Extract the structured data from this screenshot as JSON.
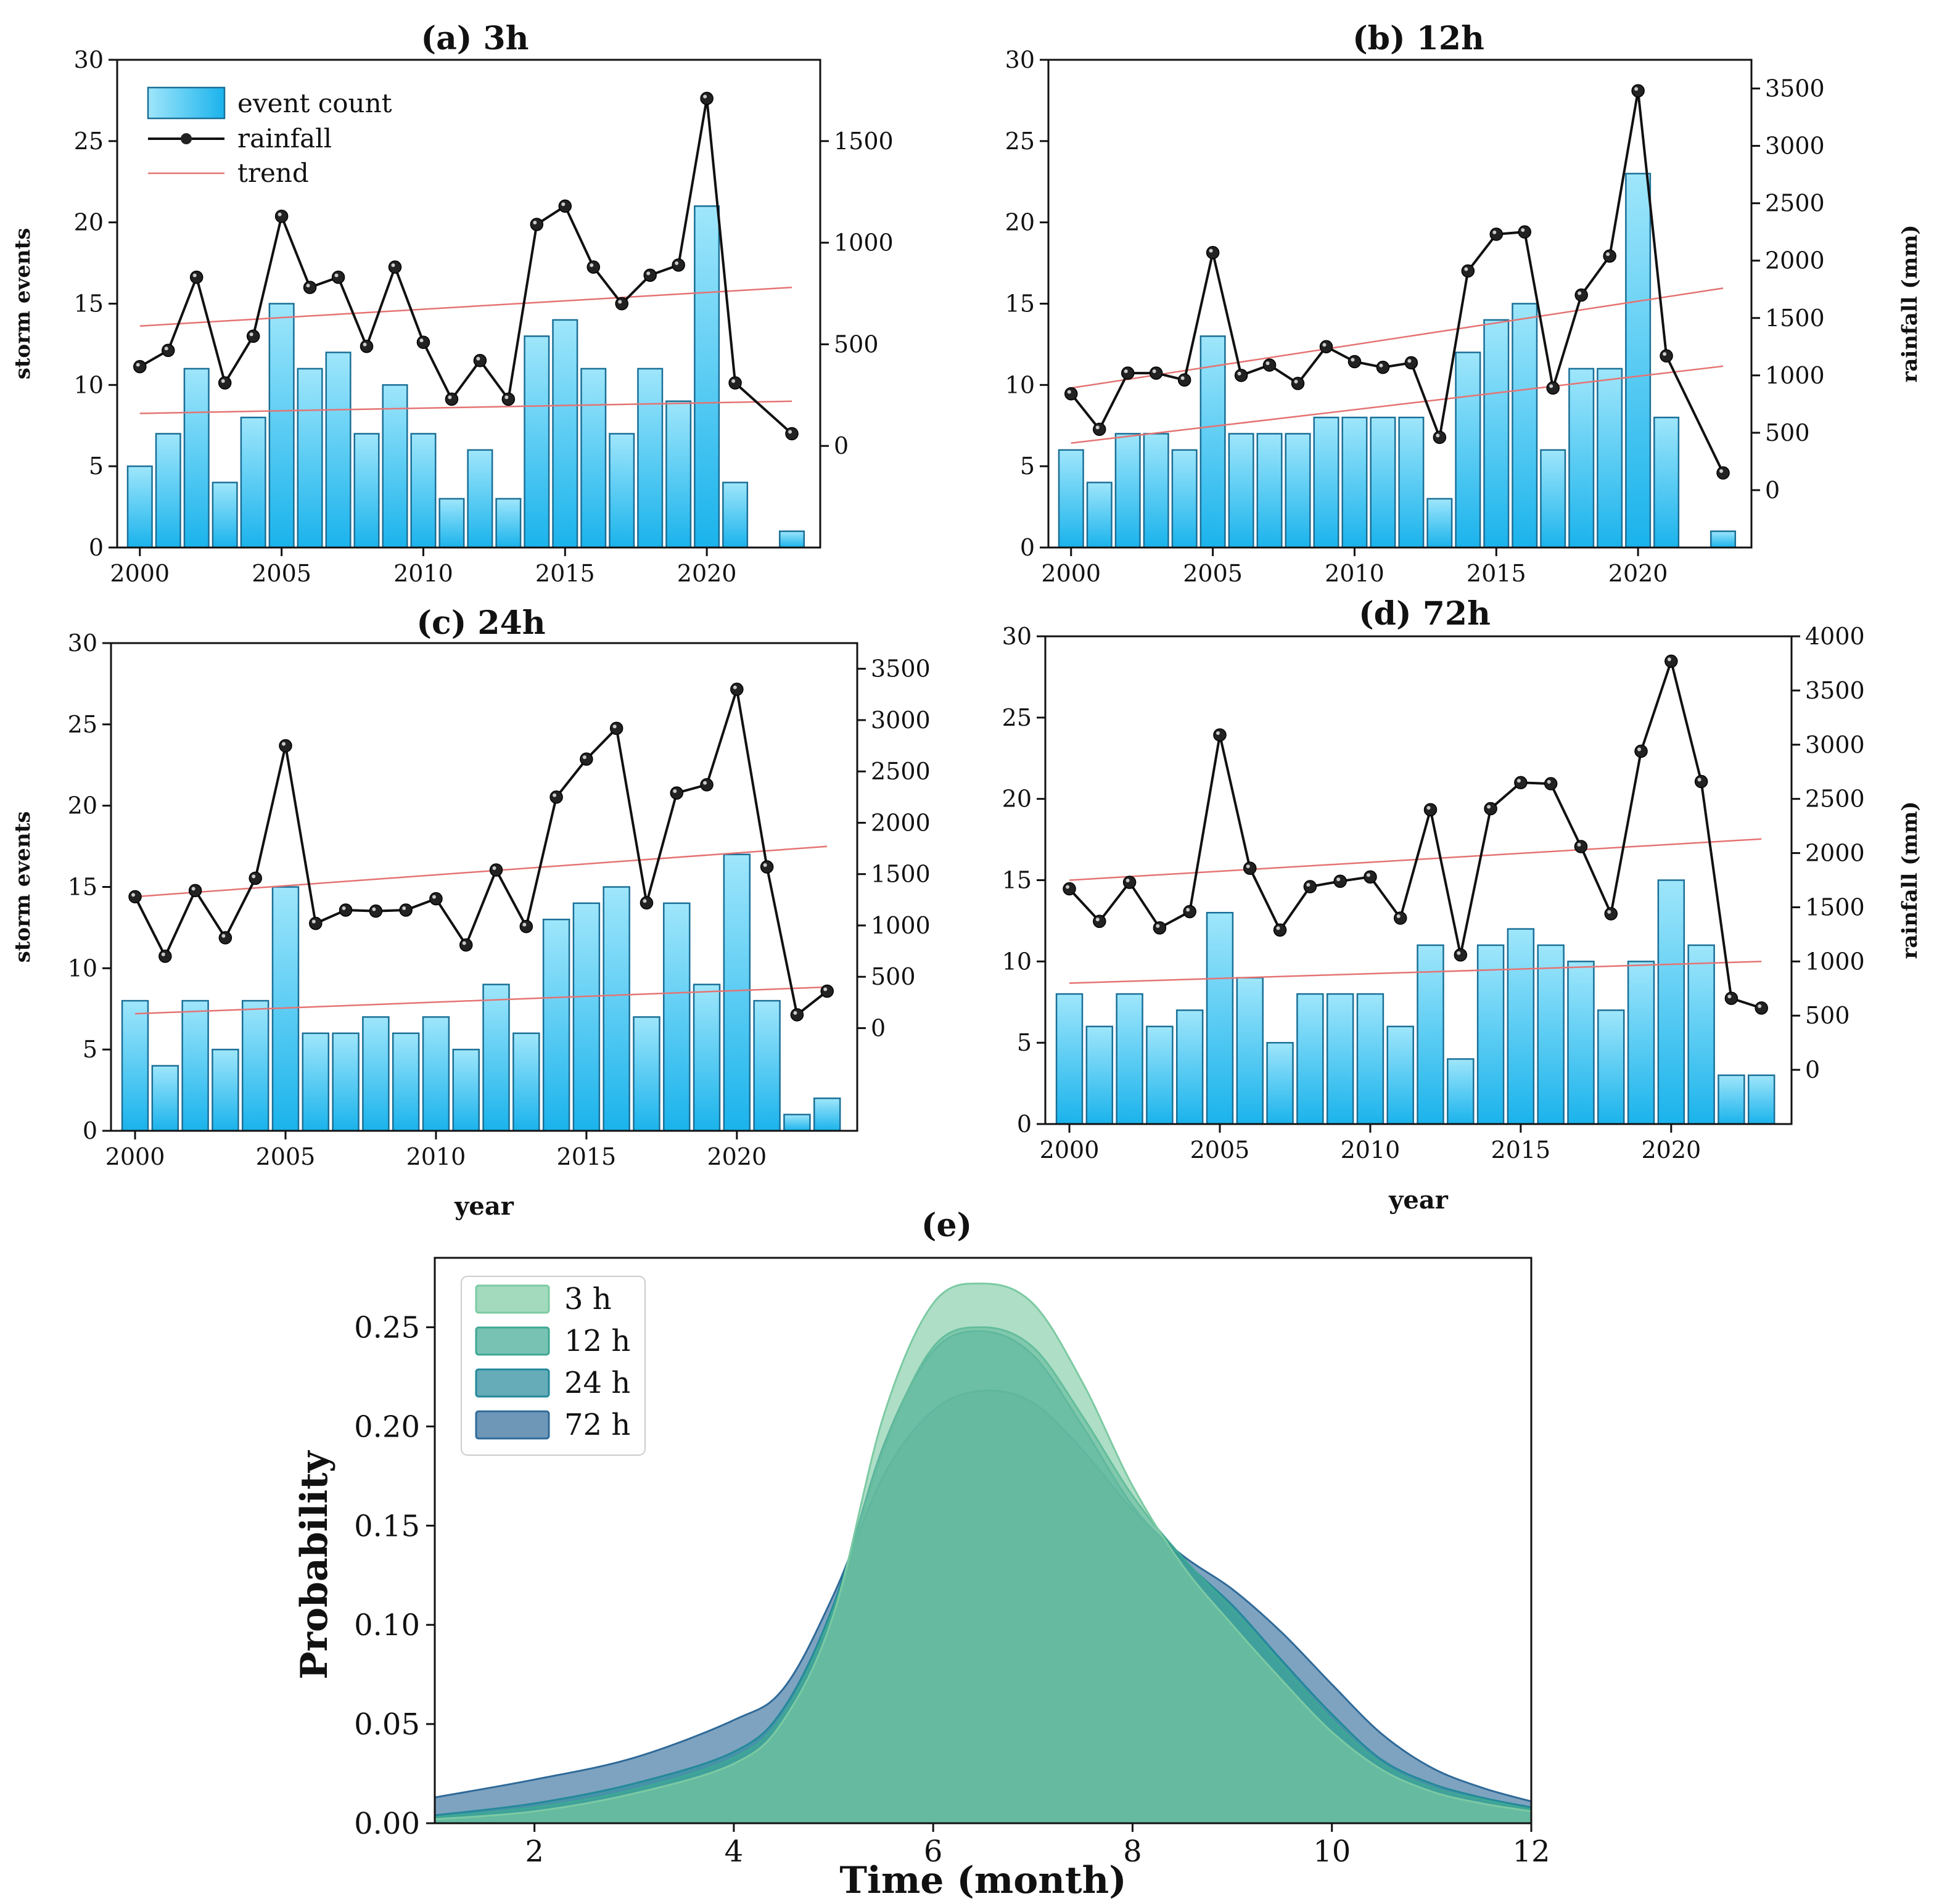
{
  "colors": {
    "bar_top": "#9fe6fb",
    "bar_bottom": "#1ab3ec",
    "bar_stroke": "#1a6f96",
    "line": "#111111",
    "marker": "#222222",
    "trend": "#e57373",
    "kde_3h": "#7ccaa3",
    "kde_12h": "#3ea894",
    "kde_24h": "#23899a",
    "kde_72h": "#2f6a99"
  },
  "chart_data": [
    {
      "id": "a",
      "type": "bar",
      "title": "(a) 3h",
      "xlabel": "",
      "ylabel": "storm events",
      "y2label": "",
      "xlim": [
        1999.2,
        2024.0
      ],
      "xticks": [
        2000,
        2005,
        2010,
        2015,
        2020
      ],
      "ylim": [
        0,
        30
      ],
      "yticks": [
        0,
        5,
        10,
        15,
        20,
        25,
        30
      ],
      "y2lim": [
        -500,
        1900
      ],
      "y2ticks": [
        0,
        500,
        1000,
        1500
      ],
      "legend": {
        "position": "top-left",
        "items": [
          "event count",
          "rainfall",
          "trend"
        ]
      },
      "series": [
        {
          "name": "event count",
          "type": "bar",
          "axis": "left",
          "x": [
            2000,
            2001,
            2002,
            2003,
            2004,
            2005,
            2006,
            2007,
            2008,
            2009,
            2010,
            2011,
            2012,
            2013,
            2014,
            2015,
            2016,
            2017,
            2018,
            2019,
            2020,
            2021,
            2023
          ],
          "values": [
            5,
            7,
            11,
            4,
            8,
            15,
            11,
            12,
            7,
            10,
            7,
            3,
            6,
            3,
            13,
            14,
            11,
            7,
            11,
            9,
            21,
            4,
            1
          ]
        },
        {
          "name": "rainfall",
          "type": "line",
          "axis": "right",
          "x": [
            2000,
            2001,
            2002,
            2003,
            2004,
            2005,
            2006,
            2007,
            2008,
            2009,
            2010,
            2011,
            2012,
            2013,
            2014,
            2015,
            2016,
            2017,
            2018,
            2019,
            2020,
            2021,
            2023
          ],
          "values": [
            390,
            470,
            830,
            310,
            540,
            1130,
            780,
            830,
            490,
            880,
            510,
            230,
            420,
            230,
            1090,
            1180,
            880,
            700,
            840,
            890,
            1710,
            310,
            60
          ]
        }
      ],
      "trends": [
        {
          "axis": "right",
          "x": [
            2000,
            2023
          ],
          "values": [
            590,
            780
          ]
        },
        {
          "axis": "right",
          "x": [
            2000,
            2023
          ],
          "values": [
            160,
            220
          ]
        }
      ]
    },
    {
      "id": "b",
      "type": "bar",
      "title": "(b) 12h",
      "xlabel": "",
      "ylabel": "",
      "y2label": "rainfall (mm)",
      "xlim": [
        1999.2,
        2024.0
      ],
      "xticks": [
        2000,
        2005,
        2010,
        2015,
        2020
      ],
      "ylim": [
        0,
        30
      ],
      "yticks": [
        0,
        5,
        10,
        15,
        20,
        25,
        30
      ],
      "y2lim": [
        -500,
        3750
      ],
      "y2ticks": [
        0,
        500,
        1000,
        1500,
        2000,
        2500,
        3000,
        3500
      ],
      "series": [
        {
          "name": "event count",
          "type": "bar",
          "axis": "left",
          "x": [
            2000,
            2001,
            2002,
            2003,
            2004,
            2005,
            2006,
            2007,
            2008,
            2009,
            2010,
            2011,
            2012,
            2013,
            2014,
            2015,
            2016,
            2017,
            2018,
            2019,
            2020,
            2021,
            2023
          ],
          "values": [
            6,
            4,
            7,
            7,
            6,
            13,
            7,
            7,
            7,
            8,
            8,
            8,
            8,
            3,
            12,
            14,
            15,
            6,
            11,
            11,
            23,
            8,
            1
          ]
        },
        {
          "name": "rainfall",
          "type": "line",
          "axis": "right",
          "x": [
            2000,
            2001,
            2002,
            2003,
            2004,
            2005,
            2006,
            2007,
            2008,
            2009,
            2010,
            2011,
            2012,
            2013,
            2014,
            2015,
            2016,
            2017,
            2018,
            2019,
            2020,
            2021,
            2023
          ],
          "values": [
            840,
            530,
            1020,
            1020,
            960,
            2070,
            1000,
            1090,
            930,
            1250,
            1120,
            1070,
            1110,
            460,
            1910,
            2230,
            2250,
            890,
            1700,
            2040,
            3480,
            1170,
            150
          ]
        }
      ],
      "trends": [
        {
          "axis": "right",
          "x": [
            2000,
            2023
          ],
          "values": [
            890,
            1760
          ]
        },
        {
          "axis": "right",
          "x": [
            2000,
            2023
          ],
          "values": [
            410,
            1080
          ]
        }
      ]
    },
    {
      "id": "c",
      "type": "bar",
      "title": "(c) 24h",
      "xlabel": "year",
      "ylabel": "storm events",
      "y2label": "",
      "xlim": [
        1999.2,
        2024.0
      ],
      "xticks": [
        2000,
        2005,
        2010,
        2015,
        2020
      ],
      "ylim": [
        0,
        30
      ],
      "yticks": [
        0,
        5,
        10,
        15,
        20,
        25,
        30
      ],
      "y2lim": [
        -1000,
        3750
      ],
      "y2ticks": [
        0,
        500,
        1000,
        1500,
        2000,
        2500,
        3000,
        3500
      ],
      "series": [
        {
          "name": "event count",
          "type": "bar",
          "axis": "left",
          "x": [
            2000,
            2001,
            2002,
            2003,
            2004,
            2005,
            2006,
            2007,
            2008,
            2009,
            2010,
            2011,
            2012,
            2013,
            2014,
            2015,
            2016,
            2017,
            2018,
            2019,
            2020,
            2021,
            2022,
            2023
          ],
          "values": [
            8,
            4,
            8,
            5,
            8,
            15,
            6,
            6,
            7,
            6,
            7,
            5,
            9,
            6,
            13,
            14,
            15,
            7,
            14,
            9,
            17,
            8,
            1,
            2
          ]
        },
        {
          "name": "rainfall",
          "type": "line",
          "axis": "right",
          "x": [
            2000,
            2001,
            2002,
            2003,
            2004,
            2005,
            2006,
            2007,
            2008,
            2009,
            2010,
            2011,
            2012,
            2013,
            2014,
            2015,
            2016,
            2017,
            2018,
            2019,
            2020,
            2021,
            2022,
            2023
          ],
          "values": [
            1280,
            700,
            1340,
            880,
            1460,
            2750,
            1020,
            1150,
            1140,
            1150,
            1260,
            810,
            1540,
            990,
            2250,
            2620,
            2920,
            1220,
            2290,
            2370,
            3300,
            1570,
            130,
            360
          ]
        }
      ],
      "trends": [
        {
          "axis": "right",
          "x": [
            2000,
            2023
          ],
          "values": [
            1280,
            1770
          ]
        },
        {
          "axis": "right",
          "x": [
            2000,
            2023
          ],
          "values": [
            140,
            400
          ]
        }
      ]
    },
    {
      "id": "d",
      "type": "bar",
      "title": "(d) 72h",
      "xlabel": "year",
      "ylabel": "",
      "y2label": "rainfall (mm)",
      "xlim": [
        1999.2,
        2024.0
      ],
      "xticks": [
        2000,
        2005,
        2010,
        2015,
        2020
      ],
      "ylim": [
        0,
        30
      ],
      "yticks": [
        0,
        5,
        10,
        15,
        20,
        25,
        30
      ],
      "y2lim": [
        -500,
        4000
      ],
      "y2ticks": [
        0,
        500,
        1000,
        1500,
        2000,
        2500,
        3000,
        3500,
        4000
      ],
      "series": [
        {
          "name": "event count",
          "type": "bar",
          "axis": "left",
          "x": [
            2000,
            2001,
            2002,
            2003,
            2004,
            2005,
            2006,
            2007,
            2008,
            2009,
            2010,
            2011,
            2012,
            2013,
            2014,
            2015,
            2016,
            2017,
            2018,
            2019,
            2020,
            2021,
            2022,
            2023
          ],
          "values": [
            8,
            6,
            8,
            6,
            7,
            13,
            9,
            5,
            8,
            8,
            8,
            6,
            11,
            4,
            11,
            12,
            11,
            10,
            7,
            10,
            15,
            11,
            3,
            3
          ]
        },
        {
          "name": "rainfall",
          "type": "line",
          "axis": "right",
          "x": [
            2000,
            2001,
            2002,
            2003,
            2004,
            2005,
            2006,
            2007,
            2008,
            2009,
            2010,
            2011,
            2012,
            2013,
            2014,
            2015,
            2016,
            2017,
            2018,
            2019,
            2020,
            2021,
            2022,
            2023
          ],
          "values": [
            1670,
            1370,
            1730,
            1310,
            1460,
            3090,
            1860,
            1290,
            1690,
            1740,
            1780,
            1400,
            2400,
            1060,
            2410,
            2650,
            2640,
            2060,
            1440,
            2940,
            3770,
            2660,
            660,
            570
          ]
        }
      ],
      "trends": [
        {
          "axis": "right",
          "x": [
            2000,
            2023
          ],
          "values": [
            1750,
            2130
          ]
        },
        {
          "axis": "right",
          "x": [
            2000,
            2023
          ],
          "values": [
            800,
            1000
          ]
        }
      ]
    },
    {
      "id": "e",
      "type": "area",
      "title": "(e)",
      "xlabel": "Time (month)",
      "ylabel": "Probability",
      "xlim": [
        1,
        12
      ],
      "xticks": [
        2,
        4,
        6,
        8,
        10,
        12
      ],
      "ylim": [
        0,
        0.285
      ],
      "yticks": [
        "0.00",
        "0.05",
        "0.10",
        "0.15",
        "0.20",
        "0.25"
      ],
      "legend": {
        "position": "top-left",
        "items": [
          "3 h",
          "12 h",
          "24 h",
          "72 h"
        ]
      },
      "series": [
        {
          "name": "72 h",
          "x": [
            1,
            2,
            3,
            4,
            4.5,
            5,
            5.5,
            6,
            6.5,
            7,
            7.5,
            8,
            8.5,
            9,
            9.5,
            10,
            10.5,
            11,
            11.5,
            12
          ],
          "values": [
            0.013,
            0.022,
            0.033,
            0.052,
            0.068,
            0.115,
            0.175,
            0.208,
            0.218,
            0.212,
            0.188,
            0.158,
            0.135,
            0.118,
            0.096,
            0.07,
            0.045,
            0.028,
            0.018,
            0.011
          ]
        },
        {
          "name": "24 h",
          "x": [
            1,
            2,
            3,
            4,
            4.5,
            5,
            5.5,
            6,
            6.5,
            7,
            7.5,
            8,
            8.5,
            9,
            9.5,
            10,
            10.5,
            11,
            11.5,
            12
          ],
          "values": [
            0.004,
            0.01,
            0.02,
            0.036,
            0.058,
            0.11,
            0.19,
            0.238,
            0.248,
            0.236,
            0.2,
            0.16,
            0.133,
            0.11,
            0.082,
            0.055,
            0.032,
            0.02,
            0.013,
            0.008
          ]
        },
        {
          "name": "12 h",
          "x": [
            1,
            2,
            3,
            4,
            4.5,
            5,
            5.5,
            6,
            6.5,
            7,
            7.5,
            8,
            8.5,
            9,
            9.5,
            10,
            10.5,
            11,
            11.5,
            12
          ],
          "values": [
            0.003,
            0.008,
            0.017,
            0.033,
            0.055,
            0.108,
            0.188,
            0.24,
            0.25,
            0.24,
            0.205,
            0.165,
            0.134,
            0.108,
            0.08,
            0.052,
            0.03,
            0.018,
            0.012,
            0.007
          ]
        },
        {
          "name": "3 h",
          "x": [
            1,
            2,
            3,
            4,
            4.5,
            5,
            5.5,
            6,
            6.5,
            7,
            7.5,
            8,
            8.5,
            9,
            9.5,
            10,
            10.5,
            11,
            11.5,
            12
          ],
          "values": [
            0.002,
            0.006,
            0.015,
            0.03,
            0.052,
            0.105,
            0.205,
            0.262,
            0.272,
            0.262,
            0.222,
            0.17,
            0.13,
            0.1,
            0.072,
            0.046,
            0.027,
            0.016,
            0.01,
            0.006
          ]
        }
      ]
    }
  ]
}
